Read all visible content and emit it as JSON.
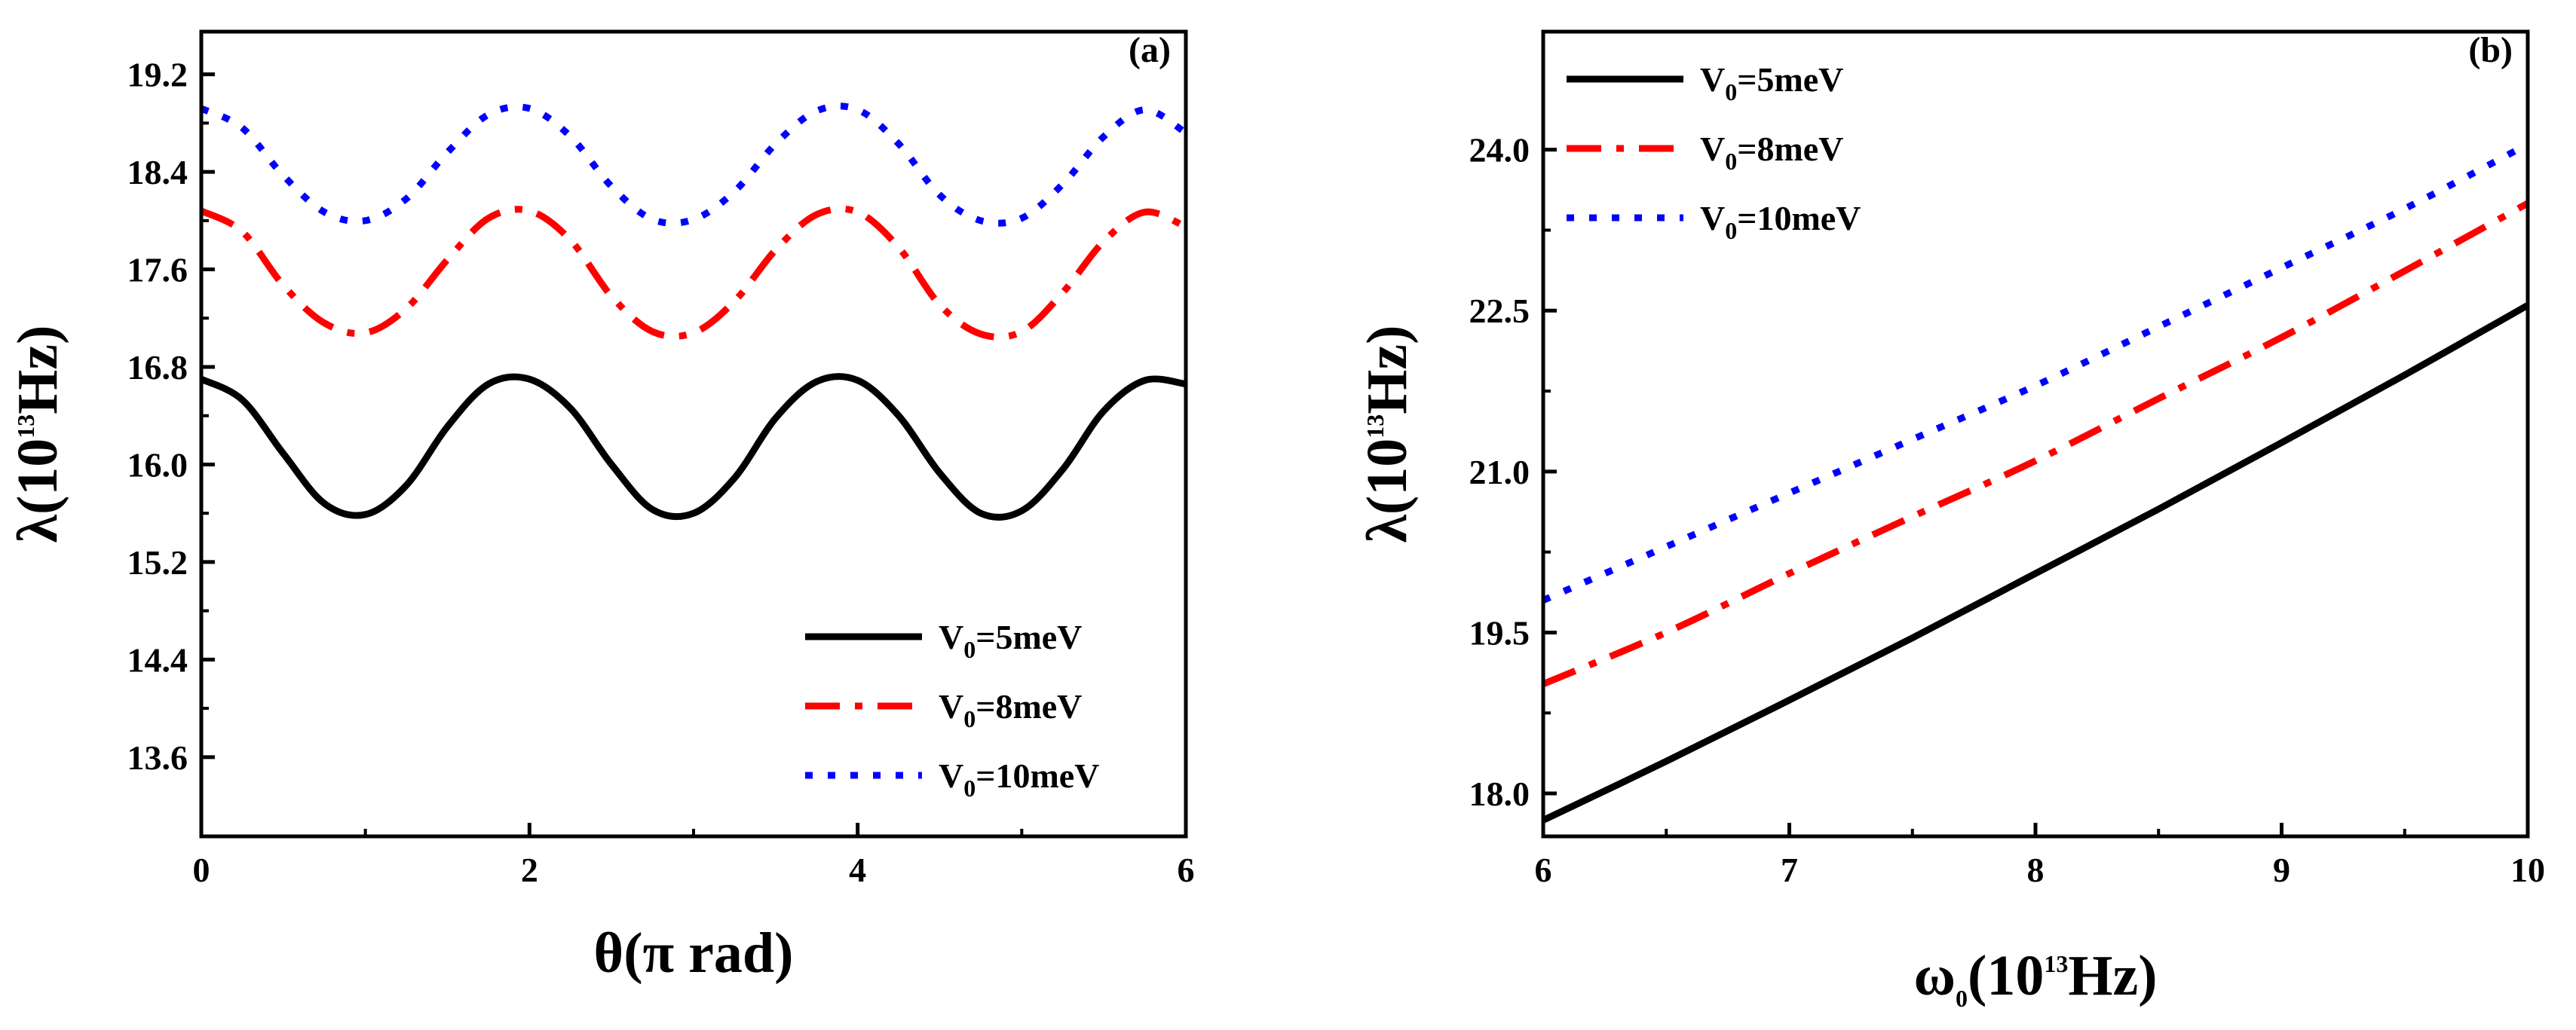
{
  "chart_data": [
    {
      "type": "line",
      "panel": "(a)",
      "xlabel_main": "θ(π rad)",
      "ylabel_prefix": "λ(10",
      "ylabel_sup": "13",
      "ylabel_suffix": "Hz)",
      "xlim": [
        0,
        6
      ],
      "ylim": [
        12.95,
        19.55
      ],
      "xticks": [
        0,
        2,
        4,
        6
      ],
      "xtick_labels": [
        "0",
        "2",
        "4",
        "6"
      ],
      "yticks": [
        13.6,
        14.4,
        15.2,
        16.0,
        16.8,
        17.6,
        18.4,
        19.2
      ],
      "ytick_labels": [
        "13.6",
        "14.4",
        "15.2",
        "16.0",
        "16.8",
        "17.6",
        "18.4",
        "19.2"
      ],
      "legend_position": "lower-right",
      "x": [
        0,
        0.25,
        0.5,
        0.75,
        1.0,
        1.25,
        1.5,
        1.75,
        2.0,
        2.25,
        2.5,
        2.75,
        3.0,
        3.25,
        3.5,
        3.75,
        4.0,
        4.25,
        4.5,
        4.75,
        5.0,
        5.25,
        5.5,
        5.75,
        6.0
      ],
      "series": [
        {
          "name_prefix": "V",
          "name_sub": "0",
          "name_suffix": "=5meV",
          "color": "#000000",
          "style": "solid",
          "values": [
            16.7,
            16.53,
            16.09,
            15.68,
            15.59,
            15.83,
            16.31,
            16.66,
            16.7,
            16.46,
            16.0,
            15.63,
            15.6,
            15.89,
            16.38,
            16.68,
            16.69,
            16.4,
            15.93,
            15.6,
            15.62,
            15.96,
            16.44,
            16.69,
            16.66
          ]
        },
        {
          "name_prefix": "V",
          "name_sub": "0",
          "name_suffix": "=8meV",
          "color": "#ff0000",
          "style": "dashdot",
          "values": [
            18.08,
            17.91,
            17.47,
            17.16,
            17.08,
            17.28,
            17.68,
            18.02,
            18.08,
            17.84,
            17.38,
            17.09,
            17.08,
            17.34,
            17.76,
            18.05,
            18.07,
            17.78,
            17.31,
            17.07,
            17.09,
            17.41,
            17.83,
            18.07,
            17.95
          ]
        },
        {
          "name_prefix": "V",
          "name_sub": "0",
          "name_suffix": "=10meV",
          "color": "#0000ff",
          "style": "dotted",
          "values": [
            18.92,
            18.76,
            18.37,
            18.07,
            18.0,
            18.18,
            18.56,
            18.87,
            18.92,
            18.69,
            18.28,
            18.01,
            18.01,
            18.24,
            18.63,
            18.9,
            18.91,
            18.63,
            18.21,
            18.0,
            18.02,
            18.3,
            18.69,
            18.91,
            18.72
          ]
        }
      ]
    },
    {
      "type": "line",
      "panel": "(b)",
      "xlabel_prefix": "ω",
      "xlabel_sub": "0",
      "xlabel_mid": "(10",
      "xlabel_sup": "13",
      "xlabel_suffix": "Hz)",
      "ylabel_prefix": "λ(10",
      "ylabel_sup": "13",
      "ylabel_suffix": "Hz)",
      "xlim": [
        6,
        10
      ],
      "ylim": [
        17.6,
        25.1
      ],
      "xticks": [
        6,
        7,
        8,
        9,
        10
      ],
      "xtick_labels": [
        "6",
        "7",
        "8",
        "9",
        "10"
      ],
      "yticks": [
        18.0,
        19.5,
        21.0,
        22.5,
        24.0
      ],
      "ytick_labels": [
        "18.0",
        "19.5",
        "21.0",
        "22.5",
        "24.0"
      ],
      "legend_position": "upper-left",
      "x": [
        6,
        6.5,
        7,
        7.5,
        8,
        8.5,
        9,
        9.5,
        10
      ],
      "series": [
        {
          "name_prefix": "V",
          "name_sub": "0",
          "name_suffix": "=5meV",
          "color": "#000000",
          "style": "solid",
          "values": [
            17.75,
            18.3,
            18.87,
            19.45,
            20.05,
            20.65,
            21.27,
            21.9,
            22.55
          ]
        },
        {
          "name_prefix": "V",
          "name_sub": "0",
          "name_suffix": "=8meV",
          "color": "#ff0000",
          "style": "dashdot",
          "values": [
            19.02,
            19.5,
            20.05,
            20.58,
            21.1,
            21.68,
            22.25,
            22.87,
            23.5
          ]
        },
        {
          "name_prefix": "V",
          "name_sub": "0",
          "name_suffix": "=10meV",
          "color": "#0000ff",
          "style": "dotted",
          "values": [
            19.8,
            20.3,
            20.8,
            21.3,
            21.8,
            22.35,
            22.9,
            23.45,
            24.05
          ]
        }
      ]
    }
  ]
}
